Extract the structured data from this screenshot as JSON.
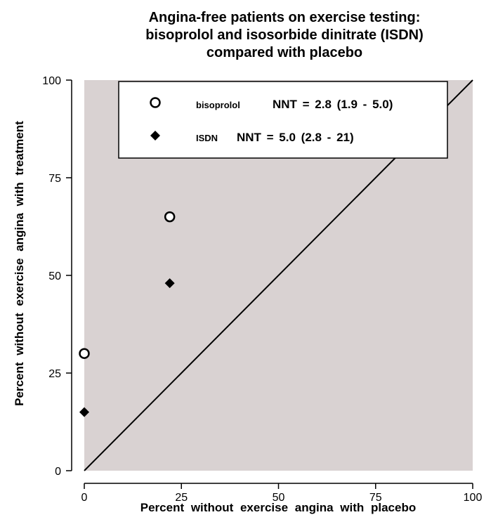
{
  "chart_data": {
    "type": "scatter",
    "title": [
      "Angina-free patients on exercise testing:",
      "bisoprolol and isosorbide dinitrate (ISDN)",
      "compared with placebo"
    ],
    "xlabel": "Percent without exercise angina with placebo",
    "ylabel": "Percent without exercise angina with treatment",
    "xlim": [
      0,
      100
    ],
    "ylim": [
      0,
      100
    ],
    "x_ticks": [
      "0",
      "25",
      "50",
      "75",
      "100"
    ],
    "y_ticks": [
      "0",
      "25",
      "50",
      "75",
      "100"
    ],
    "plot_background": "#d9d2d2",
    "legend_position": "top",
    "series": [
      {
        "name": "bisoprolol",
        "annotation": "NNT = 2.8 (1.9 - 5.0)",
        "marker": "open-circle",
        "points": [
          {
            "x": 0,
            "y": 30
          },
          {
            "x": 22,
            "y": 65
          }
        ]
      },
      {
        "name": "ISDN",
        "annotation": "NNT = 5.0 (2.8 - 21)",
        "marker": "filled-diamond",
        "points": [
          {
            "x": 0,
            "y": 15
          },
          {
            "x": 22,
            "y": 48
          }
        ]
      }
    ],
    "reference_line": {
      "label": "",
      "from": {
        "x": 0,
        "y": 0
      },
      "to": {
        "x": 100,
        "y": 100
      }
    }
  }
}
